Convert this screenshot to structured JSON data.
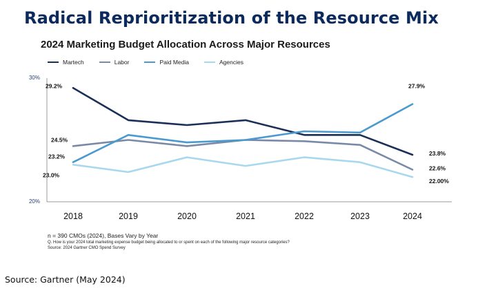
{
  "headline": "Radical Reprioritization of the Resource Mix",
  "source_text": "Source: Gartner (May 2024)",
  "chart_data": {
    "type": "line",
    "title": "2024 Marketing Budget Allocation Across Major Resources",
    "x": [
      "2018",
      "2019",
      "2020",
      "2021",
      "2022",
      "2023",
      "2024"
    ],
    "ylim": [
      20,
      30
    ],
    "ytick_labels": [
      "30%",
      "20%"
    ],
    "series": [
      {
        "name": "Martech",
        "color": "#1b2f57",
        "values": [
          29.2,
          26.6,
          26.2,
          26.6,
          25.4,
          25.4,
          23.8
        ]
      },
      {
        "name": "Labor",
        "color": "#7a8aa6",
        "values": [
          24.5,
          25.0,
          24.5,
          25.0,
          24.9,
          24.6,
          22.6
        ]
      },
      {
        "name": "Paid Media",
        "color": "#4a9ad0",
        "values": [
          23.2,
          25.4,
          24.8,
          25.0,
          25.7,
          25.6,
          27.9
        ]
      },
      {
        "name": "Agencies",
        "color": "#a8d8ef",
        "values": [
          23.0,
          22.4,
          23.6,
          22.9,
          23.6,
          23.2,
          22.0
        ]
      }
    ],
    "data_labels": [
      {
        "series": 0,
        "index": 0,
        "text": "29.2%"
      },
      {
        "series": 1,
        "index": 0,
        "text": "24.5%"
      },
      {
        "series": 2,
        "index": 0,
        "text": "23.2%"
      },
      {
        "series": 3,
        "index": 0,
        "text": "23.0%"
      },
      {
        "series": 2,
        "index": 6,
        "text": "27.9%"
      },
      {
        "series": 0,
        "index": 6,
        "text": "23.8%"
      },
      {
        "series": 1,
        "index": 6,
        "text": "22.6%"
      },
      {
        "series": 3,
        "index": 6,
        "text": "22.00%"
      }
    ],
    "footnote_base": "n = 390 CMOs (2024), Bases Vary by Year",
    "footnote_question": "Q. How is your 2024 total marketing expense budget being allocated to or spent on each of the following major resource categories?",
    "footnote_source": "Source: 2024 Gartner CMO Spend Survey"
  }
}
